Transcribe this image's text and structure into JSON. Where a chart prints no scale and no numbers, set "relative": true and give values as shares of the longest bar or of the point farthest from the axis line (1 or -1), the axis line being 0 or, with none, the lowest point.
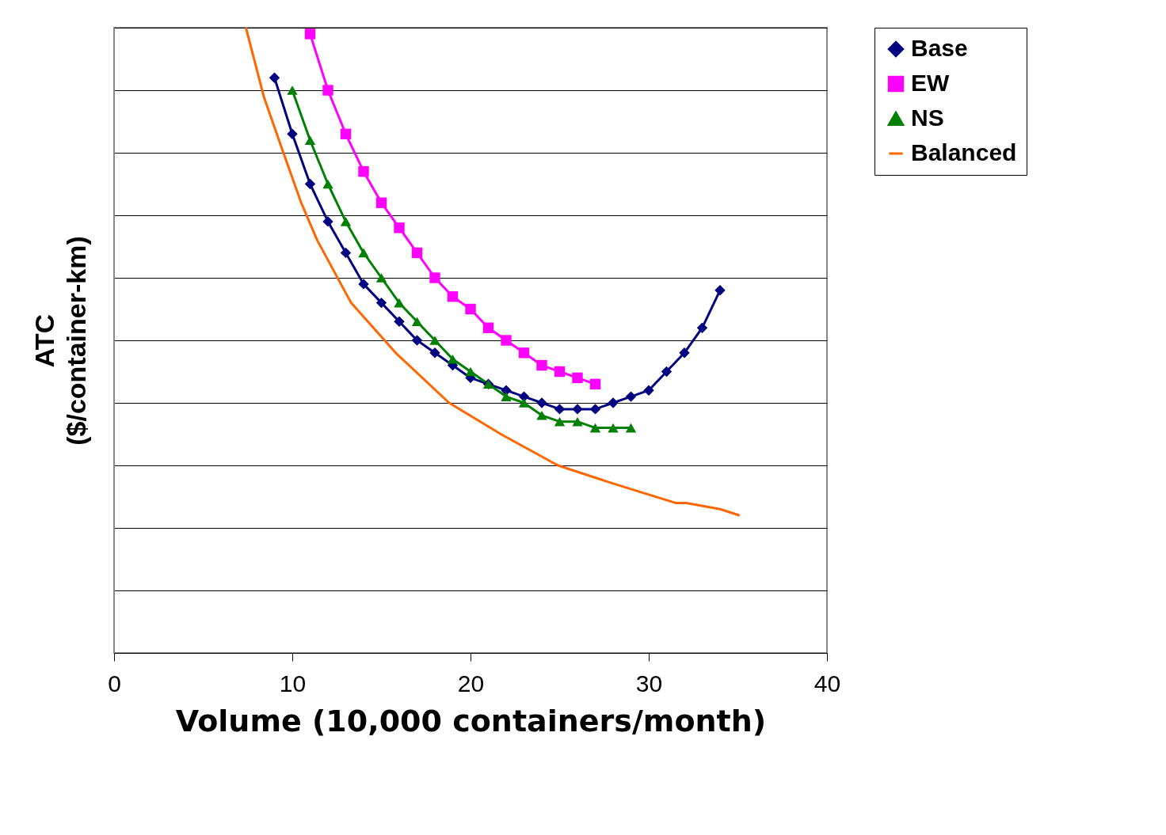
{
  "chart_data": {
    "type": "line",
    "relative": true,
    "xlabel": "Volume (10,000 containers/month)",
    "ylabel": "ATC\n($/container-km)",
    "xlim": [
      0,
      40
    ],
    "xticks": [
      0,
      10,
      20,
      30,
      40
    ],
    "grid": "y",
    "legend": "right",
    "line_style": "solid",
    "series": [
      {
        "name": "Base",
        "color": "#000080",
        "marker": "diamond",
        "x": [
          9,
          10,
          11,
          12,
          13,
          14,
          15,
          16,
          17,
          18,
          19,
          20,
          21,
          22,
          23,
          24,
          25,
          26,
          27,
          28,
          29,
          30,
          31,
          32,
          33,
          34
        ],
        "values": [
          0.92,
          0.83,
          0.75,
          0.69,
          0.64,
          0.59,
          0.56,
          0.53,
          0.5,
          0.48,
          0.46,
          0.44,
          0.43,
          0.42,
          0.41,
          0.4,
          0.39,
          0.39,
          0.39,
          0.4,
          0.41,
          0.42,
          0.45,
          0.48,
          0.52,
          0.58
        ]
      },
      {
        "name": "EW",
        "color": "#ff00ff",
        "marker": "square",
        "x": [
          11,
          12,
          13,
          14,
          15,
          16,
          17,
          18,
          19,
          20,
          21,
          22,
          23,
          24,
          25,
          26,
          27
        ],
        "values": [
          0.99,
          0.9,
          0.83,
          0.77,
          0.72,
          0.68,
          0.64,
          0.6,
          0.57,
          0.55,
          0.52,
          0.5,
          0.48,
          0.46,
          0.45,
          0.44,
          0.43
        ]
      },
      {
        "name": "NS",
        "color": "#008000",
        "marker": "triangle",
        "x": [
          10,
          11,
          12,
          13,
          14,
          15,
          16,
          17,
          18,
          19,
          20,
          21,
          22,
          23,
          24,
          25,
          26,
          27,
          28,
          29
        ],
        "values": [
          0.9,
          0.82,
          0.75,
          0.69,
          0.64,
          0.6,
          0.56,
          0.53,
          0.5,
          0.47,
          0.45,
          0.43,
          0.41,
          0.4,
          0.38,
          0.37,
          0.37,
          0.36,
          0.36,
          0.36
        ]
      },
      {
        "name": "Balanced",
        "color": "#ff6600",
        "marker": "none",
        "x": [
          7.4,
          8.4,
          9.5,
          10.5,
          11.4,
          13.3,
          15.8,
          18.8,
          21.7,
          24.9,
          28.1,
          31.5,
          32.1,
          34.0,
          35.1
        ],
        "values": [
          1.0,
          0.89,
          0.8,
          0.72,
          0.66,
          0.56,
          0.48,
          0.4,
          0.35,
          0.3,
          0.27,
          0.24,
          0.24,
          0.23,
          0.22
        ]
      }
    ]
  }
}
